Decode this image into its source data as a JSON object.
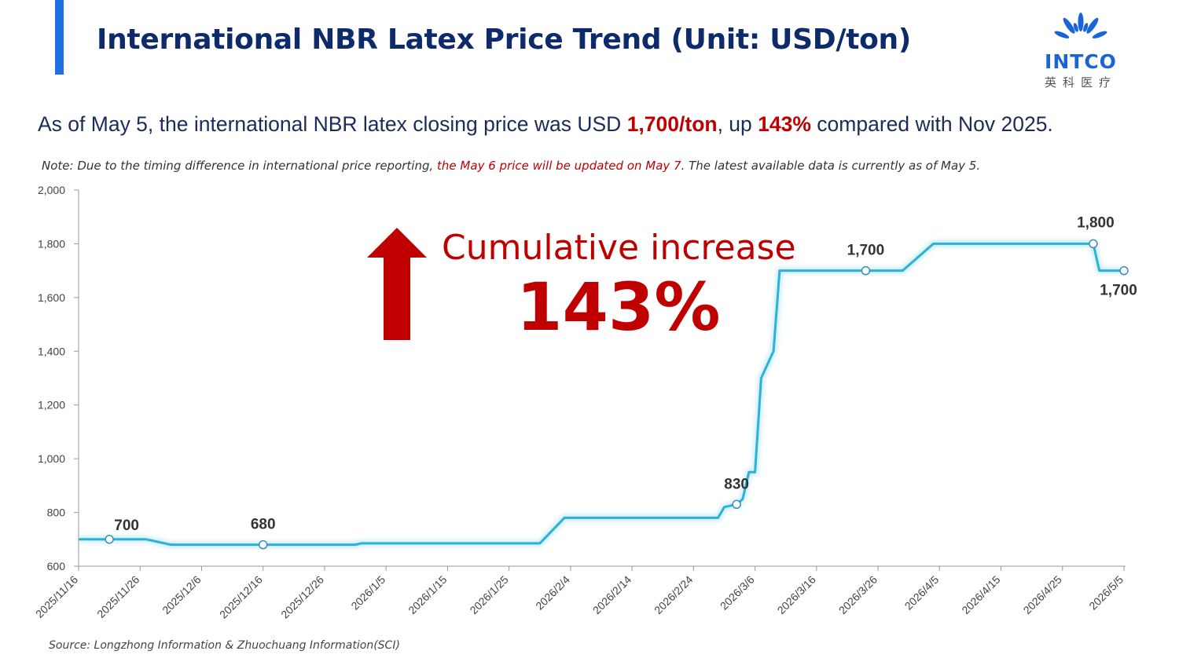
{
  "slide": {
    "title": "International NBR Latex Price Trend (Unit: USD/ton)",
    "summary": {
      "part1": "As of May 5, the international NBR latex closing price was USD ",
      "price": "1,700/ton",
      "part2": ", up ",
      "pct": "143%",
      "part3": " compared with Nov 2025."
    },
    "note": {
      "part1": "Note: Due to the timing difference in international price reporting, ",
      "red": "the May 6 price will be updated on May 7",
      "part2": ". The latest available data is currently as of May 5."
    },
    "source": "Source: Longzhong Information & Zhuochuang Information(SCI)",
    "callout": {
      "line1": "Cumulative increase",
      "line2": "143%"
    },
    "logo": {
      "text": "INTCO",
      "subtitle": "英科医疗"
    }
  },
  "colors": {
    "title": "#0d2a6b",
    "accent": "#1f6fe5",
    "highlight": "#c00000",
    "line": "#2bb3d6",
    "logo": "#1a63d8"
  },
  "chart_data": {
    "type": "line",
    "xlabel": "",
    "ylabel": "",
    "ylim": [
      600,
      2000
    ],
    "yticks": [
      600,
      800,
      1000,
      1200,
      1400,
      1600,
      1800,
      2000
    ],
    "y_tick_labels": [
      "600",
      "800",
      "1,000",
      "1,200",
      "1,400",
      "1,600",
      "1,800",
      "2,000"
    ],
    "x_tick_labels": [
      "2025/11/16",
      "2025/11/26",
      "2025/12/6",
      "2025/12/16",
      "2025/12/26",
      "2026/1/5",
      "2026/1/15",
      "2026/1/25",
      "2026/2/4",
      "2026/2/14",
      "2026/2/24",
      "2026/3/6",
      "2026/3/16",
      "2026/3/26",
      "2026/4/5",
      "2026/4/15",
      "2026/4/25",
      "2026/5/5"
    ],
    "x_range": [
      "2025/11/16",
      "2026/5/5"
    ],
    "grid": false,
    "series": [
      {
        "x": [
          "2025/11/16",
          "2025/11/27",
          "2025/12/1",
          "2025/12/16",
          "2025/12/31",
          "2026/1/1",
          "2026/1/30",
          "2026/2/3",
          "2026/2/28",
          "2026/3/1",
          "2026/3/3",
          "2026/3/4",
          "2026/3/5",
          "2026/3/6",
          "2026/3/7",
          "2026/3/9",
          "2026/3/10",
          "2026/3/11",
          "2026/3/24",
          "2026/3/30",
          "2026/4/4",
          "2026/4/30",
          "2026/5/1",
          "2026/5/5"
        ],
        "y": [
          700,
          700,
          680,
          680,
          680,
          685,
          685,
          780,
          780,
          820,
          830,
          850,
          950,
          950,
          1300,
          1400,
          1700,
          1700,
          1700,
          1700,
          1800,
          1800,
          1700,
          1700
        ]
      }
    ],
    "data_labels": [
      {
        "x": "2025/11/21",
        "y": 700,
        "label": "700"
      },
      {
        "x": "2025/12/16",
        "y": 680,
        "label": "680"
      },
      {
        "x": "2026/3/3",
        "y": 830,
        "label": "830"
      },
      {
        "x": "2026/3/24",
        "y": 1700,
        "label": "1,700"
      },
      {
        "x": "2026/4/30",
        "y": 1800,
        "label": "1,800"
      },
      {
        "x": "2026/5/5",
        "y": 1700,
        "label": "1,700"
      }
    ]
  }
}
